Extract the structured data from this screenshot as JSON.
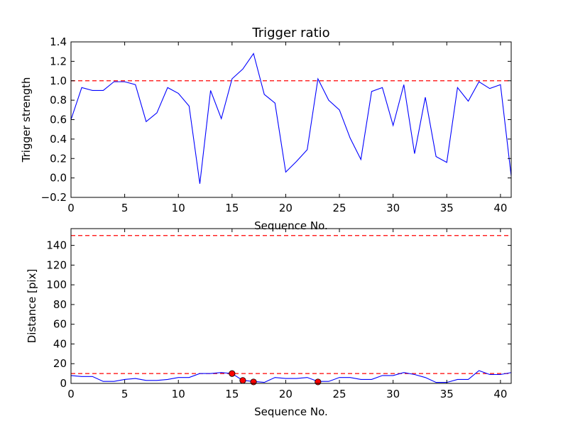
{
  "chart_data": [
    {
      "type": "line",
      "title": "Trigger ratio",
      "xlabel": "Sequence No.",
      "ylabel": "Trigger strength",
      "xlim": [
        0,
        41
      ],
      "ylim": [
        -0.2,
        1.4
      ],
      "xticks": [
        "0",
        "5",
        "10",
        "15",
        "20",
        "25",
        "30",
        "35",
        "40"
      ],
      "yticks": [
        "−0.2",
        "0.0",
        "0.2",
        "0.4",
        "0.6",
        "0.8",
        "1.0",
        "1.2",
        "1.4"
      ],
      "grid": false,
      "series": [
        {
          "color": "#0000ff",
          "x": [
            0,
            1,
            2,
            3,
            4,
            5,
            6,
            7,
            8,
            9,
            10,
            11,
            12,
            13,
            14,
            15,
            16,
            17,
            18,
            19,
            20,
            21,
            22,
            23,
            24,
            25,
            26,
            27,
            28,
            29,
            30,
            31,
            32,
            33,
            34,
            35,
            36,
            37,
            38,
            39,
            40,
            41
          ],
          "values": [
            0.6,
            0.93,
            0.9,
            0.9,
            0.99,
            0.99,
            0.96,
            0.58,
            0.67,
            0.93,
            0.87,
            0.74,
            -0.06,
            0.9,
            0.61,
            1.02,
            1.12,
            1.28,
            0.86,
            0.77,
            0.06,
            0.17,
            0.29,
            1.02,
            0.8,
            0.7,
            0.41,
            0.19,
            0.89,
            0.93,
            0.54,
            0.96,
            0.25,
            0.83,
            0.22,
            0.16,
            0.93,
            0.79,
            0.99,
            0.92,
            0.96,
            0.02
          ]
        }
      ],
      "threshold_lines": [
        {
          "y": 1.0,
          "color": "#ff0000",
          "style": "dashed"
        }
      ]
    },
    {
      "type": "line",
      "xlabel": "Sequence No.",
      "ylabel": "Distance [pix]",
      "xlim": [
        0,
        41
      ],
      "ylim": [
        0,
        157
      ],
      "xticks": [
        "0",
        "5",
        "10",
        "15",
        "20",
        "25",
        "30",
        "35",
        "40"
      ],
      "yticks": [
        "0",
        "20",
        "40",
        "60",
        "80",
        "100",
        "120",
        "140"
      ],
      "grid": false,
      "series": [
        {
          "color": "#0000ff",
          "x": [
            0,
            1,
            2,
            3,
            4,
            5,
            6,
            7,
            8,
            9,
            10,
            11,
            12,
            13,
            14,
            15,
            16,
            17,
            18,
            19,
            20,
            21,
            22,
            23,
            24,
            25,
            26,
            27,
            28,
            29,
            30,
            31,
            32,
            33,
            34,
            35,
            36,
            37,
            38,
            39,
            40,
            41
          ],
          "values": [
            8,
            7,
            7,
            2,
            2,
            4,
            5,
            3,
            3,
            4,
            6,
            6,
            10,
            10,
            11,
            10,
            3,
            2,
            1,
            6,
            5,
            5,
            6,
            2,
            2,
            6,
            6,
            4,
            4,
            8,
            8,
            11,
            9,
            6,
            1,
            1,
            4,
            4,
            13,
            9,
            9,
            11
          ]
        }
      ],
      "markers": {
        "color": "#ff0000",
        "x": [
          15,
          16,
          17,
          23
        ],
        "y": [
          10,
          3,
          1.5,
          1.5
        ]
      },
      "threshold_lines": [
        {
          "y": 150,
          "color": "#ff0000",
          "style": "dashed"
        },
        {
          "y": 10,
          "color": "#ff0000",
          "style": "dashed"
        }
      ]
    }
  ]
}
